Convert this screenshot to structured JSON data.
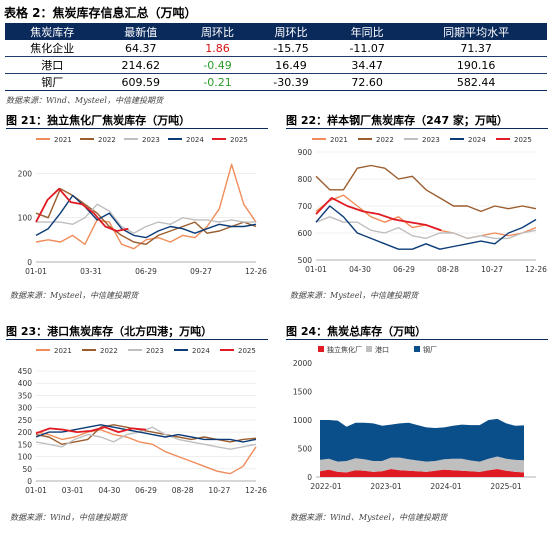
{
  "table": {
    "title": "表格 2：焦炭库存信息汇总（万吨）",
    "headers": [
      "焦炭库存",
      "最新值",
      "周环比",
      "周环比",
      "年同比",
      "同期平均水平"
    ],
    "rows": [
      {
        "name": "焦化企业",
        "latest": "64.37",
        "wow_abs": "1.86",
        "wow_pct": "-15.75",
        "yoy": "-11.07",
        "avg": "71.37"
      },
      {
        "name": "港口",
        "latest": "214.62",
        "wow_abs": "-0.49",
        "wow_pct": "16.49",
        "yoy": "34.47",
        "avg": "190.16"
      },
      {
        "name": "钢厂",
        "latest": "609.59",
        "wow_abs": "-0.21",
        "wow_pct": "-30.39",
        "yoy": "72.60",
        "avg": "582.44"
      }
    ],
    "source": "数据来源：Wind、Mysteel，中信建投期货"
  },
  "colors": {
    "y2021": "#f08c5a",
    "y2022": "#9b5d2e",
    "y2023": "#bfbfbf",
    "y2024": "#0b3c78",
    "y2025": "#e01b24",
    "header": "#0b2a5c"
  },
  "charts": [
    {
      "title": "图 21：独立焦化厂焦炭库存（万吨）",
      "source": "数据来源：Mysteel，中信建投期货",
      "legend": [
        "2021",
        "2022",
        "2023",
        "2024",
        "2025"
      ],
      "yticks": [
        "0",
        "100",
        "200"
      ],
      "xticks": [
        "01-01",
        "03-31",
        "06-29",
        "09-27",
        "12-26"
      ],
      "chart_data": {
        "type": "line",
        "ylim": [
          0,
          230
        ],
        "series": [
          {
            "name": "2021",
            "values": [
              45,
              50,
              45,
              60,
              40,
              95,
              90,
              40,
              30,
              50,
              55,
              45,
              60,
              55,
              80,
              120,
              220,
              130,
              90
            ]
          },
          {
            "name": "2022",
            "values": [
              110,
              100,
              165,
              150,
              130,
              110,
              80,
              60,
              45,
              40,
              60,
              70,
              80,
              90,
              65,
              70,
              80,
              90,
              80
            ]
          },
          {
            "name": "2023",
            "values": [
              90,
              90,
              90,
              85,
              100,
              130,
              115,
              80,
              65,
              80,
              90,
              85,
              100,
              95,
              95,
              90,
              95,
              90,
              90
            ]
          },
          {
            "name": "2024",
            "values": [
              60,
              75,
              110,
              150,
              125,
              95,
              110,
              75,
              60,
              55,
              70,
              80,
              75,
              65,
              75,
              85,
              80,
              80,
              85
            ]
          },
          {
            "name": "2025",
            "values": [
              90,
              140,
              165,
              135,
              130,
              110,
              80,
              70,
              75
            ]
          }
        ]
      }
    },
    {
      "title": "图 22：样本钢厂焦炭库存（247 家；万吨）",
      "source": "数据来源：Mysteel，中信建投期货",
      "legend": [
        "2021",
        "2022",
        "2023",
        "2024",
        "2025"
      ],
      "yticks": [
        "500",
        "600",
        "700",
        "800",
        "900"
      ],
      "xticks": [
        "01-01",
        "04-30",
        "06-29",
        "08-28",
        "10-27",
        "12-26"
      ],
      "chart_data": {
        "type": "line",
        "ylim": [
          500,
          900
        ],
        "series": [
          {
            "name": "2021",
            "values": [
              680,
              720,
              740,
              700,
              660,
              640,
              660,
              620,
              630,
              610,
              600,
              580,
              590,
              600,
              590,
              600,
              620
            ]
          },
          {
            "name": "2022",
            "values": [
              810,
              760,
              760,
              840,
              850,
              840,
              800,
              810,
              760,
              730,
              700,
              700,
              680,
              700,
              690,
              700,
              690
            ]
          },
          {
            "name": "2023",
            "values": [
              640,
              660,
              640,
              640,
              610,
              600,
              620,
              590,
              580,
              600,
              600,
              580,
              590,
              580,
              580,
              600,
              610
            ]
          },
          {
            "name": "2024",
            "values": [
              640,
              700,
              660,
              600,
              580,
              560,
              540,
              540,
              560,
              540,
              550,
              560,
              570,
              560,
              600,
              620,
              650
            ]
          },
          {
            "name": "2025",
            "values": [
              670,
              730,
              700,
              680,
              670,
              650,
              640,
              630,
              610
            ]
          }
        ]
      }
    },
    {
      "title": "图 23：港口焦炭库存（北方四港；万吨）",
      "source": "数据来源：Wind，中信建投期货",
      "legend": [
        "2021",
        "2022",
        "2023",
        "2024",
        "2025"
      ],
      "yticks": [
        "0",
        "50",
        "100",
        "150",
        "200",
        "250",
        "300",
        "350",
        "400",
        "450"
      ],
      "xticks": [
        "01-01",
        "03-01",
        "04-30",
        "06-29",
        "08-28",
        "10-27",
        "12-26"
      ],
      "chart_data": {
        "type": "line",
        "ylim": [
          0,
          450
        ],
        "series": [
          {
            "name": "2021",
            "values": [
              200,
              190,
              170,
              180,
              200,
              210,
              190,
              180,
              160,
              150,
              120,
              100,
              80,
              60,
              40,
              30,
              60,
              140
            ]
          },
          {
            "name": "2022",
            "values": [
              190,
              180,
              150,
              160,
              170,
              220,
              230,
              220,
              210,
              200,
              190,
              180,
              170,
              180,
              170,
              160,
              170,
              175
            ]
          },
          {
            "name": "2023",
            "values": [
              160,
              150,
              140,
              170,
              190,
              180,
              160,
              190,
              200,
              220,
              190,
              170,
              160,
              150,
              140,
              130,
              140,
              150
            ]
          },
          {
            "name": "2024",
            "values": [
              180,
              200,
              200,
              210,
              220,
              230,
              220,
              210,
              200,
              190,
              180,
              190,
              180,
              170,
              170,
              170,
              160,
              170
            ]
          },
          {
            "name": "2025",
            "values": [
              195,
              215,
              210,
              200,
              205,
              220,
              200,
              215,
              210
            ]
          }
        ]
      }
    },
    {
      "title": "图 24：焦炭总库存（万吨）",
      "source": "数据来源：Wind、Mysteel，中信建投期货",
      "legend": [
        "独立焦化厂",
        "港口",
        "钢厂"
      ],
      "yticks": [
        "0",
        "500",
        "1000",
        "1500",
        "2000"
      ],
      "xticks": [
        "2022-01",
        "2023-01",
        "2024-01",
        "2025-01"
      ],
      "chart_data": {
        "type": "area",
        "ylim": [
          0,
          2000
        ],
        "series": [
          {
            "name": "独立焦化厂",
            "values": [
              100,
              130,
              90,
              80,
              120,
              110,
              90,
              100,
              140,
              120,
              110,
              100,
              90,
              110,
              130,
              120,
              110,
              100,
              90,
              120,
              140,
              110,
              90,
              80
            ]
          },
          {
            "name": "港口",
            "values": [
              200,
              190,
              180,
              200,
              210,
              200,
              190,
              180,
              200,
              220,
              200,
              190,
              180,
              170,
              180,
              200,
              210,
              190,
              180,
              200,
              220,
              210,
              210,
              215
            ]
          },
          {
            "name": "钢厂",
            "values": [
              700,
              680,
              720,
              600,
              620,
              640,
              660,
              620,
              580,
              600,
              640,
              620,
              600,
              580,
              560,
              580,
              600,
              620,
              640,
              680,
              660,
              620,
              600,
              610
            ]
          }
        ]
      }
    }
  ]
}
